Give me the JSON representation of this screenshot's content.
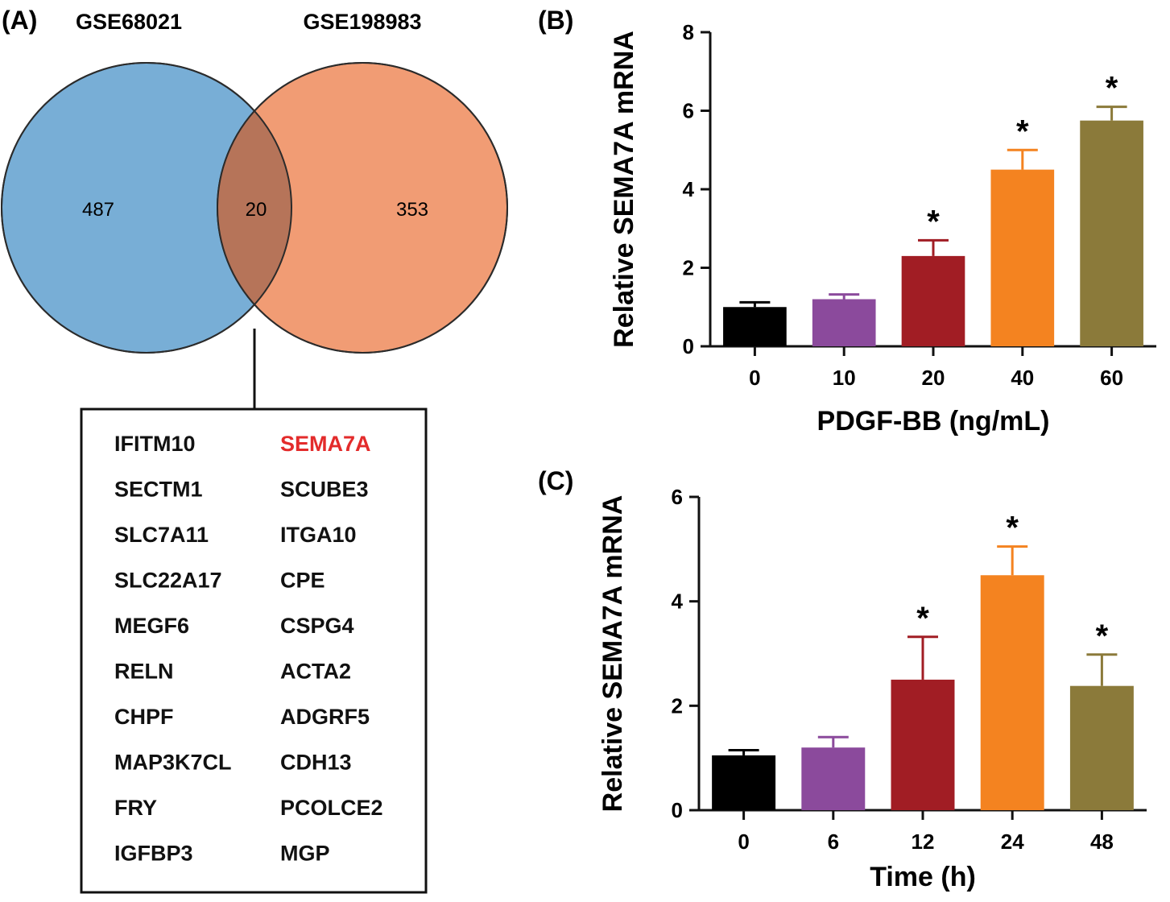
{
  "venn": {
    "panel_label": "(A)",
    "set_a_name": "GSE68021",
    "set_b_name": "GSE198983",
    "only_a": "487",
    "overlap": "20",
    "only_b": "353",
    "colors": {
      "set_a": "#78aed6",
      "set_b": "#f19c74",
      "overlap": "#b67459",
      "highlight": "#e32b2b"
    },
    "genes_col1": [
      "IFITM10",
      "SECTM1",
      "SLC7A11",
      "SLC22A17",
      "MEGF6",
      "RELN",
      "CHPF",
      "MAP3K7CL",
      "FRY",
      "IGFBP3"
    ],
    "genes_col2": [
      "SEMA7A",
      "SCUBE3",
      "ITGA10",
      "CPE",
      "CSPG4",
      "ACTA2",
      "ADGRF5",
      "CDH13",
      "PCOLCE2",
      "MGP"
    ],
    "highlight_gene": "SEMA7A"
  },
  "chart_data": [
    {
      "panel_label": "(B)",
      "type": "bar",
      "title": "",
      "categories": [
        "0",
        "10",
        "20",
        "40",
        "60"
      ],
      "values": [
        1.0,
        1.2,
        2.3,
        4.5,
        5.75
      ],
      "errors": [
        0.12,
        0.12,
        0.4,
        0.5,
        0.35
      ],
      "significant": [
        false,
        false,
        true,
        true,
        true
      ],
      "sig_marker": "*",
      "colors": [
        "#000000",
        "#8b4a9c",
        "#a11d24",
        "#f48320",
        "#8b7a3a"
      ],
      "xlabel": "PDGF-BB (ng/mL)",
      "ylabel": "Relative SEMA7A mRNA",
      "ylim": [
        0,
        8
      ],
      "yticks": [
        "0",
        "2",
        "4",
        "6",
        "8"
      ]
    },
    {
      "panel_label": "(C)",
      "type": "bar",
      "title": "",
      "categories": [
        "0",
        "6",
        "12",
        "24",
        "48"
      ],
      "values": [
        1.05,
        1.2,
        2.5,
        4.5,
        2.38
      ],
      "errors": [
        0.1,
        0.2,
        0.82,
        0.55,
        0.6
      ],
      "significant": [
        false,
        false,
        true,
        true,
        true
      ],
      "sig_marker": "*",
      "colors": [
        "#000000",
        "#8b4a9c",
        "#a11d24",
        "#f48320",
        "#8b7a3a"
      ],
      "xlabel": "Time (h)",
      "ylabel": "Relative SEMA7A mRNA",
      "ylim": [
        0,
        6
      ],
      "yticks": [
        "0",
        "2",
        "4",
        "6"
      ]
    }
  ]
}
